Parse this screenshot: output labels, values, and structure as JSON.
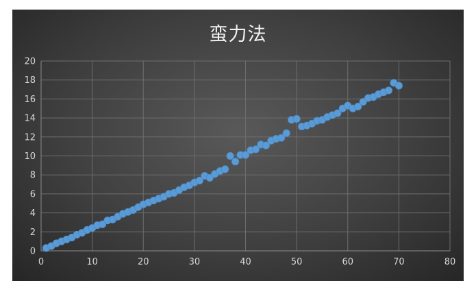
{
  "chart_data": {
    "type": "scatter",
    "title": "蛮力法",
    "xlabel": "",
    "ylabel": "",
    "xlim": [
      0,
      80
    ],
    "ylim": [
      0,
      20
    ],
    "x_ticks": [
      "0",
      "10",
      "20",
      "30",
      "40",
      "50",
      "60",
      "70",
      "80"
    ],
    "y_ticks": [
      "0",
      "2",
      "4",
      "6",
      "8",
      "10",
      "12",
      "14",
      "16",
      "18",
      "20"
    ],
    "grid": true,
    "legend": "none",
    "marker_color": "#5b9bd5",
    "series": [
      {
        "x": [
          1,
          2,
          3,
          4,
          5,
          6,
          7,
          8,
          9,
          10,
          11,
          12,
          13,
          14,
          15,
          16,
          17,
          18,
          19,
          20,
          21,
          22,
          23,
          24,
          25,
          26,
          27,
          28,
          29,
          30,
          31,
          32,
          33,
          34,
          35,
          36,
          37,
          38,
          39,
          40,
          41,
          42,
          43,
          44,
          45,
          46,
          47,
          48,
          49,
          50,
          51,
          52,
          53,
          54,
          55,
          56,
          57,
          58,
          59,
          60,
          61,
          62,
          63,
          64,
          65,
          66,
          67,
          68,
          69,
          70
        ],
        "y": [
          0.3,
          0.5,
          0.8,
          1.0,
          1.2,
          1.4,
          1.7,
          1.9,
          2.2,
          2.4,
          2.7,
          2.8,
          3.2,
          3.3,
          3.6,
          3.9,
          4.1,
          4.3,
          4.6,
          4.9,
          5.1,
          5.3,
          5.5,
          5.7,
          6.0,
          6.1,
          6.4,
          6.7,
          6.9,
          7.2,
          7.4,
          7.9,
          7.7,
          8.1,
          8.4,
          8.6,
          10.0,
          9.4,
          10.1,
          10.1,
          10.6,
          10.7,
          11.2,
          11.1,
          11.6,
          11.8,
          11.9,
          12.4,
          13.8,
          13.9,
          13.1,
          13.2,
          13.4,
          13.7,
          13.8,
          14.1,
          14.3,
          14.5,
          15.0,
          15.3,
          15.0,
          15.2,
          15.7,
          16.1,
          16.2,
          16.5,
          16.7,
          16.9,
          17.7,
          17.4
        ]
      }
    ]
  }
}
